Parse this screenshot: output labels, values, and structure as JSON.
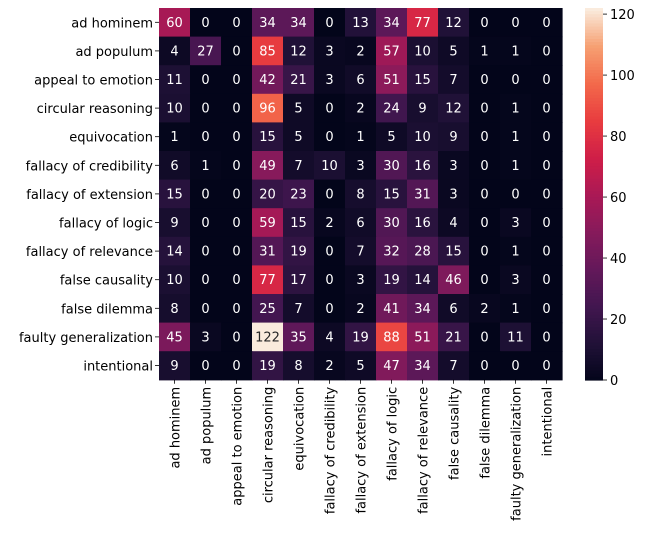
{
  "chart_data": {
    "type": "heatmap",
    "title": "",
    "xlabel": "",
    "ylabel": "",
    "x_categories": [
      "ad hominem",
      "ad populum",
      "appeal to emotion",
      "circular reasoning",
      "equivocation",
      "fallacy of credibility",
      "fallacy of extension",
      "fallacy of logic",
      "fallacy of relevance",
      "false causality",
      "false dilemma",
      "faulty generalization",
      "intentional"
    ],
    "y_categories": [
      "ad hominem",
      "ad populum",
      "appeal to emotion",
      "circular reasoning",
      "equivocation",
      "fallacy of credibility",
      "fallacy of extension",
      "fallacy of logic",
      "fallacy of relevance",
      "false causality",
      "false dilemma",
      "faulty generalization",
      "intentional"
    ],
    "values": [
      [
        60,
        0,
        0,
        34,
        34,
        0,
        13,
        34,
        77,
        12,
        0,
        0,
        0
      ],
      [
        4,
        27,
        0,
        85,
        12,
        3,
        2,
        57,
        10,
        5,
        1,
        1,
        0
      ],
      [
        11,
        0,
        0,
        42,
        21,
        3,
        6,
        51,
        15,
        7,
        0,
        0,
        0
      ],
      [
        10,
        0,
        0,
        96,
        5,
        0,
        2,
        24,
        9,
        12,
        0,
        1,
        0
      ],
      [
        1,
        0,
        0,
        15,
        5,
        0,
        1,
        5,
        10,
        9,
        0,
        1,
        0
      ],
      [
        6,
        1,
        0,
        49,
        7,
        10,
        3,
        30,
        16,
        3,
        0,
        1,
        0
      ],
      [
        15,
        0,
        0,
        20,
        23,
        0,
        8,
        15,
        31,
        3,
        0,
        0,
        0
      ],
      [
        9,
        0,
        0,
        59,
        15,
        2,
        6,
        30,
        16,
        4,
        0,
        3,
        0
      ],
      [
        14,
        0,
        0,
        31,
        19,
        0,
        7,
        32,
        28,
        15,
        0,
        1,
        0
      ],
      [
        10,
        0,
        0,
        77,
        17,
        0,
        3,
        19,
        14,
        46,
        0,
        3,
        0
      ],
      [
        8,
        0,
        0,
        25,
        7,
        0,
        2,
        41,
        34,
        6,
        2,
        1,
        0
      ],
      [
        45,
        3,
        0,
        122,
        35,
        4,
        19,
        88,
        51,
        21,
        0,
        11,
        0
      ],
      [
        9,
        0,
        0,
        19,
        8,
        2,
        5,
        47,
        34,
        7,
        0,
        0,
        0
      ]
    ],
    "vmin": 0,
    "vmax": 122,
    "colormap": "rocket",
    "colorbar": {
      "ticks": [
        0,
        20,
        40,
        60,
        80,
        100,
        120
      ],
      "tick_labels": [
        "0",
        "20",
        "40",
        "60",
        "80",
        "100",
        "120"
      ]
    },
    "annotate": true,
    "grid": false
  }
}
